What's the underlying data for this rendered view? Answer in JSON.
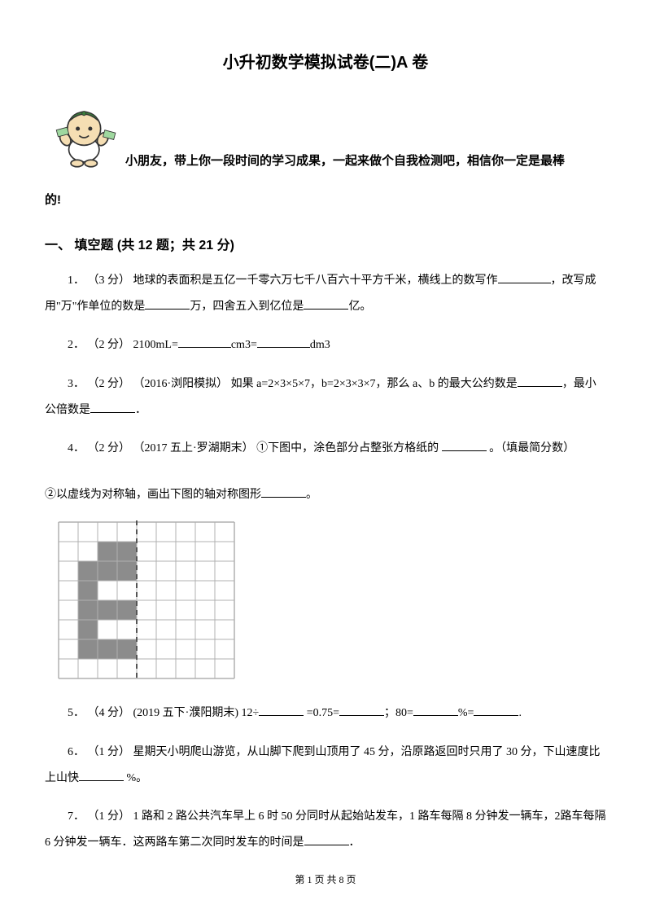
{
  "title": "小升初数学模拟试卷(二)A 卷",
  "intro": {
    "line1": "小朋友，带上你一段时间的学习成果，一起来做个自我检测吧，相信你一定是最棒",
    "line2": "的!"
  },
  "section1": {
    "heading": "一、 填空题  (共 12 题；共 21 分)",
    "q1": {
      "num": "1．",
      "pts": "（3 分）",
      "pre": " 地球的表面积是五亿一千零六万七千八百六十平方千米，横线上的数写作",
      "mid1": "，改写成用\"万\"作单位的数是",
      "mid2": "万，四舍五入到亿位是",
      "end": "亿。"
    },
    "q2": {
      "num": "2．",
      "pts": "（2 分）",
      "text1": " 2100mL=",
      "text2": "cm3=",
      "text3": "dm3"
    },
    "q3": {
      "num": "3．",
      "pts": "（2 分）",
      "src": " （2016·浏阳模拟） ",
      "text1": " 如果 a=2×3×5×7，b=2×3×3×7，那么 a、b 的最大公约数是",
      "text2": "，最小公倍数是",
      "text3": "．"
    },
    "q4": {
      "num": "4．",
      "pts": "（2 分）",
      "src": " （2017 五上·罗湖期末） ",
      "text1": "①下图中，涂色部分占整张方格纸的 ",
      "text2": " 。（填最简分数）",
      "sub2a": "②以虚线为对称轴，画出下图的轴对称图形",
      "sub2b": "。"
    },
    "q5": {
      "num": "5．",
      "pts": "（4 分）",
      "src": " (2019 五下·濮阳期末) ",
      "t1": " 12÷",
      "t2": " =0.75=",
      "t3": "；80=",
      "t4": "%=",
      "t5": "."
    },
    "q6": {
      "num": "6．",
      "pts": "（1 分）",
      "t1": " 星期天小明爬山游览，从山脚下爬到山顶用了 45 分，沿原路返回时只用了 30 分，下山速度比上山快",
      "t2": " %。"
    },
    "q7": {
      "num": "7．",
      "pts": "（1 分）",
      "t1": " 1 路和 2 路公共汽车早上 6 时 50 分同时从起始站发车，1 路车每隔 8 分钟发一辆车，2路车每隔 6 分钟发一辆车．这两路车第二次同时发车的时间是",
      "t2": "．"
    }
  },
  "figure": {
    "grid_border": "#b0b0b0",
    "fill": "#8c8c8c",
    "dash": "#555555",
    "bg": "#ffffff",
    "cell": 24,
    "cols": 9,
    "rows": 8,
    "dash_col": 4,
    "filled_cells": [
      [
        1,
        2
      ],
      [
        1,
        3
      ],
      [
        2,
        1
      ],
      [
        2,
        2
      ],
      [
        2,
        3
      ],
      [
        3,
        1
      ],
      [
        4,
        1
      ],
      [
        4,
        2
      ],
      [
        4,
        3
      ],
      [
        5,
        1
      ],
      [
        6,
        1
      ],
      [
        6,
        2
      ],
      [
        6,
        3
      ]
    ]
  },
  "footer": "第 1 页 共 8 页"
}
